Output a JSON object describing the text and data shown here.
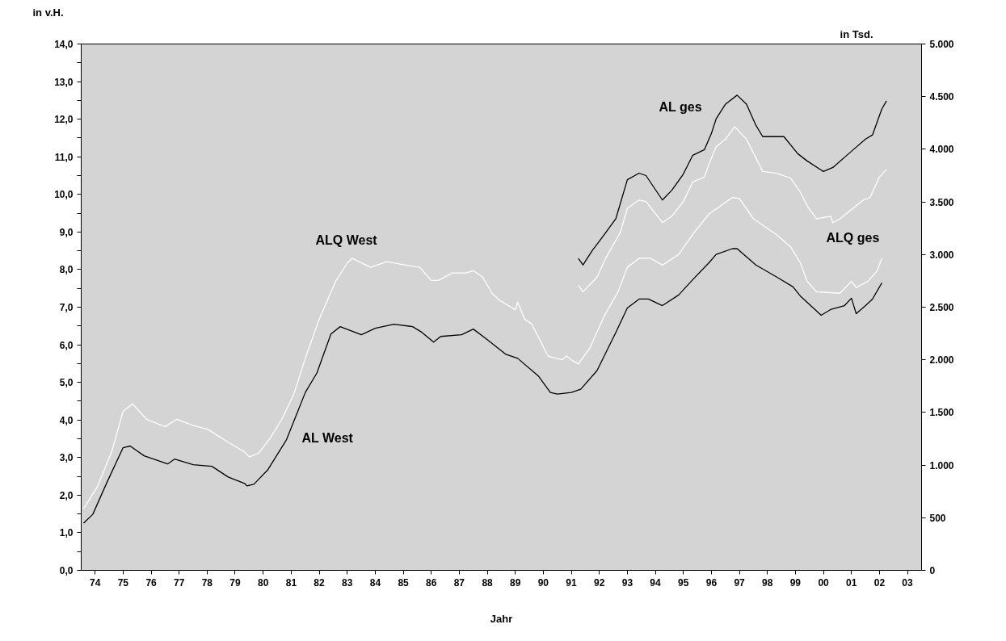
{
  "chart_data": {
    "type": "line",
    "ylabel": "in v.H.",
    "y2label": "in Tsd.",
    "xlabel": "Jahr",
    "xlim": [
      "1974-01",
      "2004-01"
    ],
    "xticks": [
      {
        "value": "1974-07",
        "label": "74"
      },
      {
        "value": "1975-07",
        "label": "75"
      },
      {
        "value": "1976-07",
        "label": "76"
      },
      {
        "value": "1977-07",
        "label": "77"
      },
      {
        "value": "1978-07",
        "label": "78"
      },
      {
        "value": "1979-07",
        "label": "79"
      },
      {
        "value": "1980-07",
        "label": "80"
      },
      {
        "value": "1981-07",
        "label": "81"
      },
      {
        "value": "1982-07",
        "label": "82"
      },
      {
        "value": "1983-07",
        "label": "83"
      },
      {
        "value": "1984-07",
        "label": "84"
      },
      {
        "value": "1985-07",
        "label": "85"
      },
      {
        "value": "1986-07",
        "label": "86"
      },
      {
        "value": "1987-07",
        "label": "87"
      },
      {
        "value": "1988-07",
        "label": "88"
      },
      {
        "value": "1989-07",
        "label": "89"
      },
      {
        "value": "1990-07",
        "label": "90"
      },
      {
        "value": "1991-07",
        "label": "91"
      },
      {
        "value": "1992-07",
        "label": "92"
      },
      {
        "value": "1993-07",
        "label": "93"
      },
      {
        "value": "1994-07",
        "label": "94"
      },
      {
        "value": "1995-07",
        "label": "95"
      },
      {
        "value": "1996-07",
        "label": "96"
      },
      {
        "value": "1997-07",
        "label": "97"
      },
      {
        "value": "1998-07",
        "label": "98"
      },
      {
        "value": "1999-07",
        "label": "99"
      },
      {
        "value": "2000-07",
        "label": "00"
      },
      {
        "value": "2001-07",
        "label": "01"
      },
      {
        "value": "2002-07",
        "label": "02"
      },
      {
        "value": "2003-07",
        "label": "03"
      }
    ],
    "ylim": [
      0,
      14
    ],
    "yticks": [
      {
        "value": 0,
        "label": "0,0"
      },
      {
        "value": 0.5,
        "label": null
      },
      {
        "value": 1,
        "label": "1,0"
      },
      {
        "value": 1.5,
        "label": null
      },
      {
        "value": 2,
        "label": "2,0"
      },
      {
        "value": 2.5,
        "label": null
      },
      {
        "value": 3,
        "label": "3,0"
      },
      {
        "value": 3.5,
        "label": null
      },
      {
        "value": 4,
        "label": "4,0"
      },
      {
        "value": 4.5,
        "label": null
      },
      {
        "value": 5,
        "label": "5,0"
      },
      {
        "value": 5.5,
        "label": null
      },
      {
        "value": 6,
        "label": "6,0"
      },
      {
        "value": 6.5,
        "label": null
      },
      {
        "value": 7,
        "label": "7,0"
      },
      {
        "value": 7.5,
        "label": null
      },
      {
        "value": 8,
        "label": "8,0"
      },
      {
        "value": 8.5,
        "label": null
      },
      {
        "value": 9,
        "label": "9,0"
      },
      {
        "value": 9.5,
        "label": null
      },
      {
        "value": 10,
        "label": "10,0"
      },
      {
        "value": 10.5,
        "label": null
      },
      {
        "value": 11,
        "label": "11,0"
      },
      {
        "value": 11.5,
        "label": null
      },
      {
        "value": 12,
        "label": "12,0"
      },
      {
        "value": 12.5,
        "label": null
      },
      {
        "value": 13,
        "label": "13,0"
      },
      {
        "value": 13.5,
        "label": null
      },
      {
        "value": 14,
        "label": "14,0"
      }
    ],
    "y2lim": [
      0,
      5000
    ],
    "y2ticks": [
      0,
      500,
      {
        "value": 1000,
        "label": "1.000"
      },
      {
        "value": 1500,
        "label": "1.500"
      },
      {
        "value": 2000,
        "label": "2.000"
      },
      {
        "value": 2500,
        "label": "2.500"
      },
      {
        "value": 3000,
        "label": "3.000"
      },
      {
        "value": 3500,
        "label": "3.500"
      },
      {
        "value": 4000,
        "label": "4.000"
      },
      {
        "value": 4500,
        "label": "4.500"
      },
      {
        "value": 5000,
        "label": "5.000"
      }
    ],
    "grid": false,
    "line_style": "solid",
    "series": [
      {
        "color": "#ffffff",
        "x": [
          "1974-02",
          "1974-08",
          "1975-02",
          "1975-07",
          "1975-11",
          "1976-05",
          "1977-01",
          "1977-06",
          "1978-01",
          "1978-07",
          "1979-04",
          "1979-11",
          "1980-01",
          "1980-05",
          "1980-10",
          "1981-03",
          "1981-08",
          "1982-01",
          "1982-07",
          "1983-02",
          "1983-07",
          "1983-09",
          "1984-05",
          "1984-12",
          "1985-08",
          "1986-02",
          "1986-07",
          "1986-10",
          "1987-04",
          "1987-10",
          "1988-01",
          "1988-05",
          "1988-09",
          "1988-12",
          "1989-07",
          "1989-08",
          "1989-11",
          "1990-02",
          "1990-09",
          "1991-03",
          "1991-05",
          "1991-07",
          "1991-10",
          "1992-03",
          "1992-09",
          "1993-03",
          "1993-07",
          "1993-12",
          "1994-05",
          "1994-10",
          "1995-05",
          "1995-11",
          "1996-06",
          "1997-04",
          "1997-07",
          "1998-01",
          "1998-11",
          "1999-05",
          "1999-09",
          "1999-12",
          "2000-04",
          "2001-02",
          "2001-07",
          "2001-09",
          "2002-02",
          "2002-06",
          "2002-08"
        ],
        "values": [
          1.64,
          2.23,
          3.15,
          4.23,
          4.43,
          4.02,
          3.82,
          4.02,
          3.85,
          3.76,
          3.41,
          3.15,
          3.02,
          3.11,
          3.52,
          4.02,
          4.67,
          5.64,
          6.68,
          7.69,
          8.17,
          8.3,
          8.06,
          8.21,
          8.12,
          8.06,
          7.71,
          7.71,
          7.91,
          7.91,
          7.97,
          7.8,
          7.37,
          7.19,
          6.93,
          7.13,
          6.68,
          6.55,
          5.7,
          5.6,
          5.7,
          5.6,
          5.49,
          5.92,
          6.76,
          7.41,
          8.06,
          8.3,
          8.3,
          8.12,
          8.4,
          8.94,
          9.48,
          9.92,
          9.89,
          9.35,
          8.92,
          8.6,
          8.19,
          7.69,
          7.41,
          7.37,
          7.69,
          7.52,
          7.69,
          7.97,
          8.3
        ]
      },
      {
        "color": "#000000",
        "axis": "y2",
        "x": [
          "1974-02",
          "1974-06",
          "1974-12",
          "1975-07",
          "1975-10",
          "1976-04",
          "1977-02",
          "1977-05",
          "1978-01",
          "1978-09",
          "1979-04",
          "1979-11",
          "1979-12",
          "1980-03",
          "1980-09",
          "1981-05",
          "1982-01",
          "1982-06",
          "1982-12",
          "1983-04",
          "1984-01",
          "1984-07",
          "1985-03",
          "1985-11",
          "1986-03",
          "1986-08",
          "1986-11",
          "1987-08",
          "1988-01",
          "1988-07",
          "1989-03",
          "1989-08",
          "1990-05",
          "1990-10",
          "1991-01",
          "1991-07",
          "1991-11",
          "1992-06",
          "1993-02",
          "1993-07",
          "1993-12",
          "1994-04",
          "1994-10",
          "1995-05",
          "1995-11",
          "1996-06",
          "1996-09",
          "1997-04",
          "1997-06",
          "1998-02",
          "1998-11",
          "1999-06",
          "1999-09",
          "2000-06",
          "2000-10",
          "2001-04",
          "2001-07",
          "2001-09",
          "2002-01",
          "2002-04",
          "2002-08"
        ],
        "values": [
          448,
          532,
          833,
          1165,
          1181,
          1088,
          1011,
          1057,
          1003,
          988,
          887,
          826,
          802,
          818,
          957,
          1242,
          1690,
          1875,
          2245,
          2315,
          2238,
          2299,
          2338,
          2315,
          2261,
          2168,
          2222,
          2238,
          2292,
          2191,
          2052,
          2014,
          1844,
          1690,
          1674,
          1690,
          1721,
          1898,
          2261,
          2492,
          2577,
          2577,
          2515,
          2616,
          2762,
          2924,
          3001,
          3056,
          3056,
          2901,
          2786,
          2693,
          2608,
          2423,
          2477,
          2515,
          2585,
          2438,
          2515,
          2577,
          2731
        ]
      },
      {
        "color": "#000000",
        "axis": "y2",
        "x": [
          "1991-10",
          "1991-12",
          "1992-04",
          "1992-09",
          "1993-02",
          "1993-07",
          "1993-12",
          "1994-03",
          "1994-10",
          "1995-02",
          "1995-07",
          "1995-11",
          "1996-04",
          "1996-07",
          "1996-09",
          "1997-01",
          "1997-06",
          "1997-10",
          "1998-02",
          "1998-05",
          "1999-02",
          "1999-08",
          "1999-12",
          "2000-07",
          "2000-11",
          "2001-07",
          "2002-01",
          "2002-04",
          "2002-08",
          "2002-10"
        ],
        "values": [
          2963,
          2901,
          3040,
          3187,
          3341,
          3711,
          3773,
          3750,
          3518,
          3611,
          3765,
          3943,
          3997,
          4151,
          4290,
          4429,
          4514,
          4429,
          4228,
          4120,
          4120,
          3958,
          3889,
          3789,
          3827,
          3981,
          4097,
          4136,
          4383,
          4460
        ]
      },
      {
        "color": "#ffffff",
        "x": [
          "1991-10",
          "1991-12",
          "1992-06",
          "1992-10",
          "1993-04",
          "1993-07",
          "1993-12",
          "1994-03",
          "1994-10",
          "1995-02",
          "1995-07",
          "1995-11",
          "1996-04",
          "1996-06",
          "1996-09",
          "1997-01",
          "1997-05",
          "1997-10",
          "1998-02",
          "1998-05",
          "1998-11",
          "1999-05",
          "1999-09",
          "1999-12",
          "2000-04",
          "2000-10",
          "2000-11",
          "2001-02",
          "2001-12",
          "2002-03",
          "2002-07",
          "2002-10"
        ],
        "values": [
          7.58,
          7.41,
          7.8,
          8.34,
          8.99,
          9.63,
          9.85,
          9.81,
          9.25,
          9.42,
          9.81,
          10.33,
          10.46,
          10.82,
          11.26,
          11.47,
          11.8,
          11.47,
          10.97,
          10.61,
          10.56,
          10.43,
          10.07,
          9.7,
          9.35,
          9.42,
          9.25,
          9.35,
          9.85,
          9.92,
          10.46,
          10.67
        ]
      }
    ],
    "annotations": [
      "ALQ West",
      "AL West",
      "AL ges",
      "ALQ ges"
    ]
  }
}
